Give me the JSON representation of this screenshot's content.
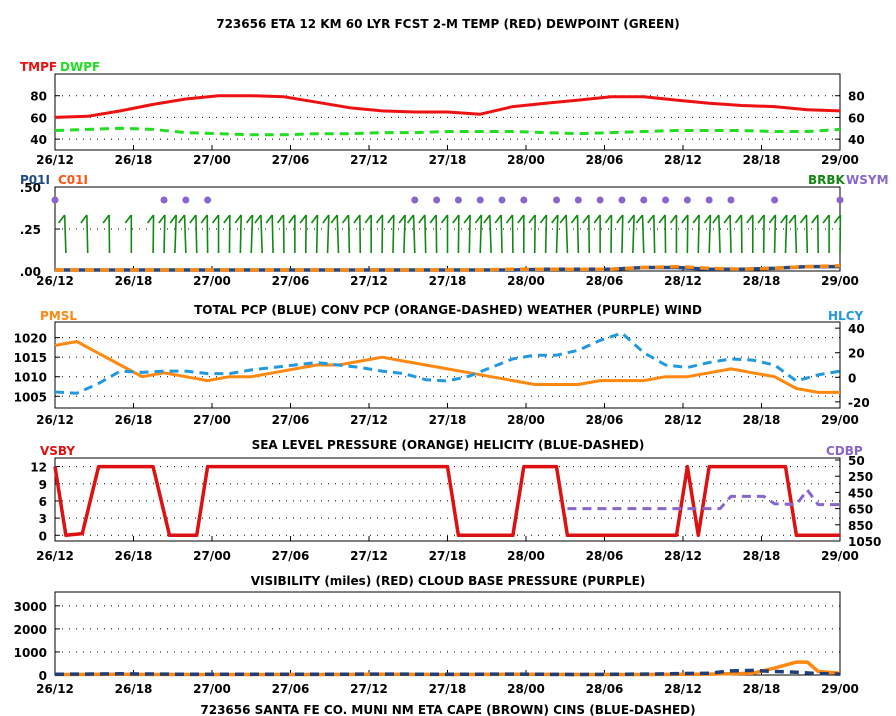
{
  "title": "723656  ETA 12 KM 60 LYR FCST 2-M TEMP (RED) DEWPOINT (GREEN)",
  "colors": {
    "red": "#ee1111",
    "green": "#22dd22",
    "blue": "#2299dd",
    "orange": "#ff8811",
    "darkblue": "#1f4a8a",
    "purple": "#8866cc",
    "barb": "#118811",
    "vsby": "#dd1111",
    "navy": "#1e3f7a"
  },
  "x_ticks": [
    "26/12",
    "26/18",
    "27/00",
    "27/06",
    "27/12",
    "27/18",
    "28/00",
    "28/06",
    "28/12",
    "28/18",
    "29/00"
  ],
  "chart_data": [
    {
      "type": "line",
      "name": "temp-dewpoint",
      "left_label_1": "TMPF",
      "left_label_2": "DWPF",
      "y_ticks": [
        "40",
        "60",
        "80"
      ],
      "ylim": [
        30,
        100
      ],
      "x_hours": [
        0,
        3,
        6,
        9,
        12,
        15,
        18,
        21,
        24,
        27,
        30,
        33,
        36,
        39,
        42,
        45,
        48,
        51,
        54,
        57,
        60,
        63,
        66,
        69,
        72
      ],
      "series": [
        {
          "name": "TMPF",
          "color": "red",
          "dashed": false,
          "values": [
            60,
            61,
            66,
            72,
            77,
            80,
            80,
            79,
            74,
            69,
            66,
            65,
            65,
            63,
            70,
            73,
            76,
            79,
            79,
            76,
            73,
            71,
            70,
            67,
            66
          ]
        },
        {
          "name": "DWPF",
          "color": "green",
          "dashed": true,
          "values": [
            48,
            49,
            50,
            49,
            46,
            45,
            44,
            44,
            45,
            45,
            46,
            46,
            47,
            47,
            47,
            46,
            45,
            46,
            47,
            48,
            48,
            48,
            47,
            47,
            49
          ]
        }
      ]
    },
    {
      "type": "line",
      "name": "precip-weather-wind",
      "left_label_1": "P01I",
      "left_label_2": "C01I",
      "right_label_1": "BRBK",
      "right_label_2": "WSYM",
      "y_ticks": [
        ".00",
        ".25",
        ".50"
      ],
      "ylim": [
        0,
        0.5
      ],
      "x_hours": [
        0,
        3,
        6,
        9,
        12,
        15,
        18,
        21,
        24,
        27,
        30,
        33,
        36,
        39,
        42,
        45,
        48,
        51,
        54,
        57,
        60,
        63,
        66,
        69,
        72
      ],
      "series": [
        {
          "name": "P01I",
          "color": "darkblue",
          "dashed": false,
          "values": [
            0,
            0,
            0,
            0,
            0,
            0,
            0,
            0,
            0,
            0,
            0,
            0,
            0,
            0,
            0,
            0.005,
            0.005,
            0.005,
            0.015,
            0.015,
            0.005,
            0.005,
            0.01,
            0.02,
            0.02
          ]
        },
        {
          "name": "C01I",
          "color": "orange",
          "dashed": true,
          "values": [
            0,
            0,
            0,
            0,
            0,
            0,
            0,
            0,
            0,
            0,
            0,
            0,
            0,
            0,
            0.005,
            0.005,
            0.005,
            0.005,
            0.015,
            0.02,
            0.01,
            0.005,
            0.01,
            0.02,
            0.025
          ]
        }
      ],
      "weather_hours": [
        0,
        10,
        12,
        14,
        33,
        35,
        37,
        39,
        41,
        43,
        46,
        48,
        50,
        52,
        54,
        56,
        58,
        60,
        62,
        66,
        72,
        74,
        76,
        78,
        80
      ],
      "wind_hours": [
        1,
        3,
        5,
        7,
        9,
        10,
        11,
        12,
        13,
        14,
        15,
        16,
        17,
        18,
        19,
        20,
        21,
        22,
        23,
        24,
        25,
        26,
        27,
        28,
        29,
        30,
        31,
        32,
        33,
        34,
        35,
        36,
        37,
        38,
        39,
        40,
        41,
        42,
        43,
        44,
        45,
        46,
        47,
        48,
        49,
        50,
        51,
        52,
        53,
        54,
        55,
        56,
        57,
        58,
        59,
        60,
        61,
        62,
        63,
        64,
        65,
        66,
        67,
        68,
        69,
        70,
        71,
        72
      ]
    },
    {
      "type": "line",
      "name": "pressure-helicity",
      "header": "TOTAL PCP (BLUE) CONV PCP (ORANGE-DASHED) WEATHER (PURPLE) WIND",
      "left_label": "PMSL",
      "right_label": "HLCY",
      "y_ticks": [
        "1005",
        "1010",
        "1015",
        "1020"
      ],
      "ylim": [
        1002,
        1024
      ],
      "right_ticks": [
        "-20",
        "0",
        "20",
        "40"
      ],
      "right_lim": [
        -25,
        45
      ],
      "x_hours": [
        0,
        2,
        4,
        6,
        8,
        10,
        12,
        14,
        16,
        18,
        20,
        22,
        24,
        26,
        28,
        30,
        32,
        34,
        36,
        38,
        40,
        42,
        44,
        46,
        48,
        50,
        52,
        54,
        56,
        58,
        60,
        62,
        64,
        66,
        68,
        70,
        72
      ],
      "series": [
        {
          "name": "PMSL",
          "color": "orange",
          "dashed": false,
          "values": [
            1018,
            1019,
            1016,
            1013,
            1010,
            1011,
            1010,
            1009,
            1010,
            1010,
            1011,
            1012,
            1013,
            1013,
            1014,
            1015,
            1014,
            1013,
            1012,
            1011,
            1010,
            1009,
            1008,
            1008,
            1008,
            1009,
            1009,
            1009,
            1010,
            1010,
            1011,
            1012,
            1011,
            1010,
            1007,
            1006,
            1006
          ]
        },
        {
          "name": "HLCY",
          "color": "blue",
          "dashed": true,
          "values": [
            -12,
            -13,
            -5,
            5,
            4,
            5,
            5,
            3,
            3,
            6,
            8,
            10,
            12,
            10,
            8,
            5,
            3,
            -2,
            -3,
            1,
            8,
            15,
            18,
            18,
            22,
            30,
            36,
            20,
            10,
            8,
            12,
            15,
            14,
            10,
            -3,
            2,
            5
          ]
        }
      ]
    },
    {
      "type": "line",
      "name": "visibility-cloud-base",
      "header": "SEA LEVEL PRESSURE (ORANGE) HELICITY (BLUE-DASHED)",
      "left_label": "VSBY",
      "right_label": "CDBP",
      "y_ticks": [
        "0",
        "3",
        "6",
        "9",
        "12"
      ],
      "ylim": [
        -1,
        13.5
      ],
      "right_ticks": [
        "50",
        "250",
        "450",
        "650",
        "850",
        "1050"
      ],
      "series": [
        {
          "name": "VSBY",
          "color": "vsby",
          "dashed": false,
          "points": [
            [
              0,
              12
            ],
            [
              1,
              0
            ],
            [
              2.5,
              0.3
            ],
            [
              4,
              12
            ],
            [
              9,
              12
            ],
            [
              10.5,
              0
            ],
            [
              13,
              0
            ],
            [
              14,
              12
            ],
            [
              36,
              12
            ],
            [
              37,
              0
            ],
            [
              42,
              0
            ],
            [
              43,
              12
            ],
            [
              46,
              12
            ],
            [
              47,
              0
            ],
            [
              57,
              0
            ],
            [
              58,
              12
            ],
            [
              59,
              0
            ],
            [
              60,
              12
            ],
            [
              67,
              12
            ],
            [
              68,
              0
            ],
            [
              72,
              0
            ]
          ]
        },
        {
          "name": "CDBP",
          "color": "purple",
          "dashed": true,
          "points": [
            [
              47,
              650
            ],
            [
              52,
              650
            ],
            [
              58,
              650
            ],
            [
              61,
              650
            ],
            [
              62,
              500
            ],
            [
              65,
              500
            ],
            [
              66,
              590
            ],
            [
              68,
              600
            ],
            [
              69,
              420
            ],
            [
              70,
              600
            ],
            [
              72,
              600
            ]
          ]
        }
      ]
    },
    {
      "type": "line",
      "name": "cape-cins",
      "header": "VISIBILITY (miles) (RED)    CLOUD BASE PRESSURE (PURPLE)",
      "y_ticks": [
        "0",
        "1000",
        "2000",
        "3000"
      ],
      "ylim": [
        0,
        3600
      ],
      "series": [
        {
          "name": "CAPE",
          "color": "orange",
          "dashed": false,
          "points": [
            [
              0,
              20
            ],
            [
              6,
              30
            ],
            [
              12,
              20
            ],
            [
              18,
              20
            ],
            [
              24,
              20
            ],
            [
              30,
              30
            ],
            [
              36,
              20
            ],
            [
              42,
              30
            ],
            [
              48,
              20
            ],
            [
              54,
              20
            ],
            [
              60,
              40
            ],
            [
              64,
              80
            ],
            [
              66,
              300
            ],
            [
              68,
              560
            ],
            [
              69,
              560
            ],
            [
              70,
              150
            ],
            [
              72,
              80
            ]
          ]
        },
        {
          "name": "CINS",
          "color": "navy",
          "dashed": true,
          "points": [
            [
              0,
              30
            ],
            [
              6,
              50
            ],
            [
              12,
              30
            ],
            [
              18,
              30
            ],
            [
              24,
              30
            ],
            [
              30,
              40
            ],
            [
              36,
              30
            ],
            [
              42,
              40
            ],
            [
              48,
              20
            ],
            [
              54,
              40
            ],
            [
              60,
              80
            ],
            [
              62,
              180
            ],
            [
              64,
              200
            ],
            [
              66,
              150
            ],
            [
              68,
              120
            ],
            [
              70,
              60
            ],
            [
              72,
              40
            ]
          ]
        }
      ]
    }
  ],
  "footer": "723656 SANTA  FE  CO.  MUNI NM  ETA CAPE (BROWN) CINS (BLUE-DASHED)"
}
